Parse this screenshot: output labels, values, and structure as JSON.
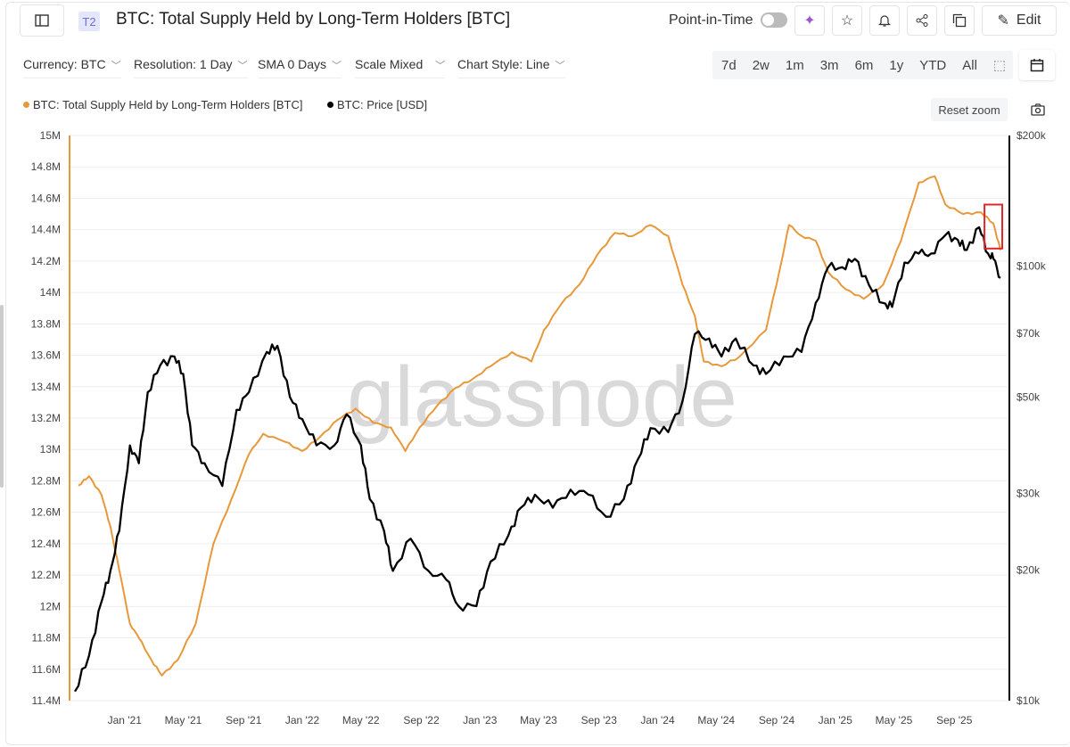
{
  "header": {
    "tag": "T2",
    "title": "BTC: Total Supply Held by Long-Term Holders [BTC]",
    "point_in_time": "Point-in-Time",
    "edit": "Edit"
  },
  "toolbar": {
    "dropdowns": [
      "Currency: BTC",
      "Resolution: 1 Day",
      "SMA 0 Days",
      "Scale Mixed",
      "Chart Style: Line"
    ],
    "ranges": [
      "7d",
      "2w",
      "1m",
      "3m",
      "6m",
      "1y",
      "YTD",
      "All"
    ]
  },
  "reset_zoom": "Reset zoom",
  "watermark": "glassnode",
  "colors": {
    "lth": "#e8983a",
    "price": "#000000",
    "highlight": "#e0262b",
    "grid": "#eeeeee"
  },
  "chart_data": {
    "type": "line",
    "title": "BTC: Total Supply Held by Long-Term Holders [BTC]",
    "legend": [
      "BTC: Total Supply Held by Long-Term Holders [BTC]",
      "BTC: Price [USD]"
    ],
    "legend_position": "top-left",
    "xlim": [
      2020.69,
      2025.97
    ],
    "x_ticks": [
      {
        "v": 2021.0,
        "label": "Jan '21"
      },
      {
        "v": 2021.33,
        "label": "May '21"
      },
      {
        "v": 2021.67,
        "label": "Sep '21"
      },
      {
        "v": 2022.0,
        "label": "Jan '22"
      },
      {
        "v": 2022.33,
        "label": "May '22"
      },
      {
        "v": 2022.67,
        "label": "Sep '22"
      },
      {
        "v": 2023.0,
        "label": "Jan '23"
      },
      {
        "v": 2023.33,
        "label": "May '23"
      },
      {
        "v": 2023.67,
        "label": "Sep '23"
      },
      {
        "v": 2024.0,
        "label": "Jan '24"
      },
      {
        "v": 2024.33,
        "label": "May '24"
      },
      {
        "v": 2024.67,
        "label": "Sep '24"
      },
      {
        "v": 2025.0,
        "label": "Jan '25"
      },
      {
        "v": 2025.33,
        "label": "May '25"
      },
      {
        "v": 2025.67,
        "label": "Sep '25"
      }
    ],
    "left_axis": {
      "ylim": [
        11.4,
        15
      ],
      "ticks": [
        {
          "v": 11.4,
          "label": "11.4M"
        },
        {
          "v": 11.6,
          "label": "11.6M"
        },
        {
          "v": 11.8,
          "label": "11.8M"
        },
        {
          "v": 12,
          "label": "12M"
        },
        {
          "v": 12.2,
          "label": "12.2M"
        },
        {
          "v": 12.4,
          "label": "12.4M"
        },
        {
          "v": 12.6,
          "label": "12.6M"
        },
        {
          "v": 12.8,
          "label": "12.8M"
        },
        {
          "v": 13,
          "label": "13M"
        },
        {
          "v": 13.2,
          "label": "13.2M"
        },
        {
          "v": 13.4,
          "label": "13.4M"
        },
        {
          "v": 13.6,
          "label": "13.6M"
        },
        {
          "v": 13.8,
          "label": "13.8M"
        },
        {
          "v": 14,
          "label": "14M"
        },
        {
          "v": 14.2,
          "label": "14.2M"
        },
        {
          "v": 14.4,
          "label": "14.4M"
        },
        {
          "v": 14.6,
          "label": "14.6M"
        },
        {
          "v": 14.8,
          "label": "14.8M"
        },
        {
          "v": 15,
          "label": "15M"
        }
      ]
    },
    "right_axis": {
      "scale": "log",
      "ylim": [
        10000,
        200000
      ],
      "ticks": [
        {
          "v": 10000,
          "label": "$10k"
        },
        {
          "v": 20000,
          "label": "$20k"
        },
        {
          "v": 30000,
          "label": "$30k"
        },
        {
          "v": 50000,
          "label": "$50k"
        },
        {
          "v": 70000,
          "label": "$70k"
        },
        {
          "v": 100000,
          "label": "$100k"
        },
        {
          "v": 200000,
          "label": "$200k"
        }
      ]
    },
    "series": [
      {
        "name": "BTC: Total Supply Held by Long-Term Holders [BTC]",
        "axis": "left",
        "unit": "M BTC",
        "x": [
          2020.74,
          2020.8,
          2020.87,
          2020.92,
          2020.97,
          2021.03,
          2021.08,
          2021.15,
          2021.21,
          2021.3,
          2021.4,
          2021.5,
          2021.6,
          2021.7,
          2021.78,
          2021.9,
          2022.0,
          2022.1,
          2022.2,
          2022.3,
          2022.4,
          2022.5,
          2022.58,
          2022.66,
          2022.76,
          2022.86,
          2022.96,
          2023.06,
          2023.18,
          2023.29,
          2023.36,
          2023.46,
          2023.56,
          2023.66,
          2023.76,
          2023.86,
          2023.96,
          2024.06,
          2024.14,
          2024.21,
          2024.26,
          2024.36,
          2024.46,
          2024.61,
          2024.69,
          2024.74,
          2024.81,
          2024.89,
          2024.96,
          2025.06,
          2025.16,
          2025.27,
          2025.37,
          2025.47,
          2025.56,
          2025.62,
          2025.72,
          2025.82,
          2025.89,
          2025.93
        ],
        "y": [
          12.77,
          12.83,
          12.71,
          12.51,
          12.23,
          11.89,
          11.8,
          11.66,
          11.56,
          11.66,
          11.89,
          12.4,
          12.68,
          12.97,
          13.1,
          13.05,
          12.99,
          13.08,
          13.19,
          13.26,
          13.17,
          13.14,
          12.99,
          13.14,
          13.28,
          13.39,
          13.45,
          13.53,
          13.62,
          13.56,
          13.76,
          13.93,
          14.05,
          14.24,
          14.38,
          14.36,
          14.43,
          14.36,
          14.05,
          13.85,
          13.56,
          13.53,
          13.59,
          13.76,
          14.16,
          14.43,
          14.36,
          14.33,
          14.13,
          14.02,
          13.96,
          14.05,
          14.33,
          14.7,
          14.74,
          14.56,
          14.5,
          14.51,
          14.44,
          14.27
        ]
      },
      {
        "name": "BTC: Price [USD]",
        "axis": "right",
        "unit": "USD",
        "x": [
          2020.72,
          2020.8,
          2020.87,
          2020.92,
          2020.97,
          2021.03,
          2021.08,
          2021.13,
          2021.2,
          2021.28,
          2021.33,
          2021.38,
          2021.45,
          2021.55,
          2021.63,
          2021.7,
          2021.8,
          2021.86,
          2021.93,
          2022.0,
          2022.08,
          2022.18,
          2022.25,
          2022.33,
          2022.38,
          2022.46,
          2022.51,
          2022.61,
          2022.71,
          2022.81,
          2022.88,
          2022.98,
          2023.06,
          2023.16,
          2023.23,
          2023.31,
          2023.41,
          2023.51,
          2023.61,
          2023.71,
          2023.81,
          2023.89,
          2023.96,
          2024.06,
          2024.14,
          2024.21,
          2024.29,
          2024.36,
          2024.44,
          2024.54,
          2024.61,
          2024.71,
          2024.81,
          2024.89,
          2024.96,
          2025.04,
          2025.11,
          2025.19,
          2025.27,
          2025.32,
          2025.39,
          2025.47,
          2025.54,
          2025.62,
          2025.69,
          2025.74,
          2025.81,
          2025.86,
          2025.89,
          2025.93
        ],
        "y": [
          10500,
          12700,
          16900,
          19900,
          24600,
          38700,
          35200,
          51300,
          59100,
          62000,
          56500,
          38700,
          35200,
          31200,
          46700,
          51300,
          63500,
          65600,
          50000,
          44500,
          38700,
          38700,
          45600,
          38700,
          29100,
          24600,
          19900,
          23600,
          19900,
          19000,
          16500,
          16500,
          20900,
          24000,
          27800,
          29800,
          27800,
          30600,
          29800,
          26500,
          29100,
          36000,
          42400,
          41500,
          48900,
          69800,
          68200,
          62000,
          68200,
          59100,
          56500,
          62000,
          63500,
          82300,
          99500,
          99500,
          104000,
          90500,
          82300,
          80600,
          102000,
          107000,
          107000,
          118000,
          115000,
          109000,
          123000,
          107000,
          104000,
          94000
        ]
      }
    ],
    "annotation": {
      "type": "highlight-box",
      "x_range": [
        2025.84,
        2025.94
      ],
      "left_range": [
        14.28,
        14.56
      ]
    }
  }
}
